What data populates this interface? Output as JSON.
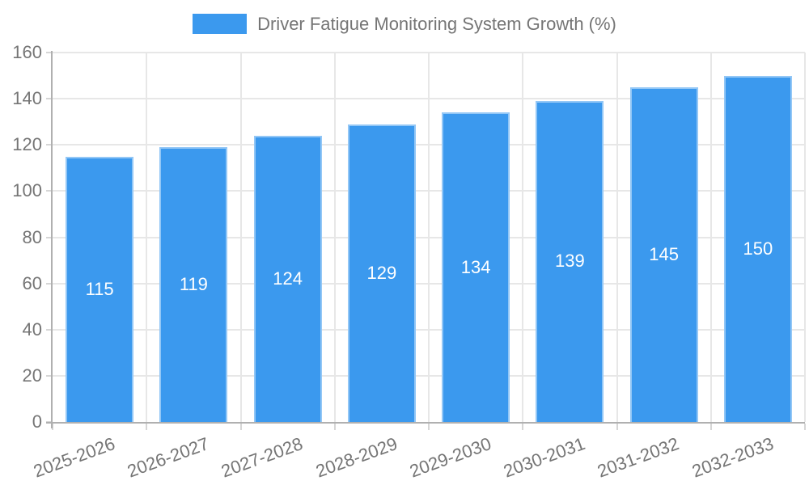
{
  "chart_data": {
    "type": "bar",
    "title": "Driver Fatigue Monitoring System Growth (%)",
    "categories": [
      "2025-2026",
      "2026-2027",
      "2027-2028",
      "2028-2029",
      "2029-2030",
      "2030-2031",
      "2031-2032",
      "2032-2033"
    ],
    "values": [
      115,
      119,
      124,
      129,
      134,
      139,
      145,
      150
    ],
    "xlabel": "",
    "ylabel": "",
    "ylim": [
      0,
      160
    ],
    "ytick_step": 20,
    "ytick_labels": [
      "0",
      "20",
      "40",
      "60",
      "80",
      "100",
      "120",
      "140",
      "160"
    ],
    "grid": true,
    "legend_position": "top-center",
    "bar_label_position": "inside-center",
    "x_label_rotation_deg": -20
  },
  "colors": {
    "bar_fill": "#3b99ee",
    "axis_line": "#b0b0b0",
    "gridline": "#e7e7e7",
    "tick_mark": "#d6d6d6",
    "tick_text": "#757575",
    "title_text": "#757575",
    "bar_label_text": "#ffffff",
    "background": "#ffffff"
  }
}
